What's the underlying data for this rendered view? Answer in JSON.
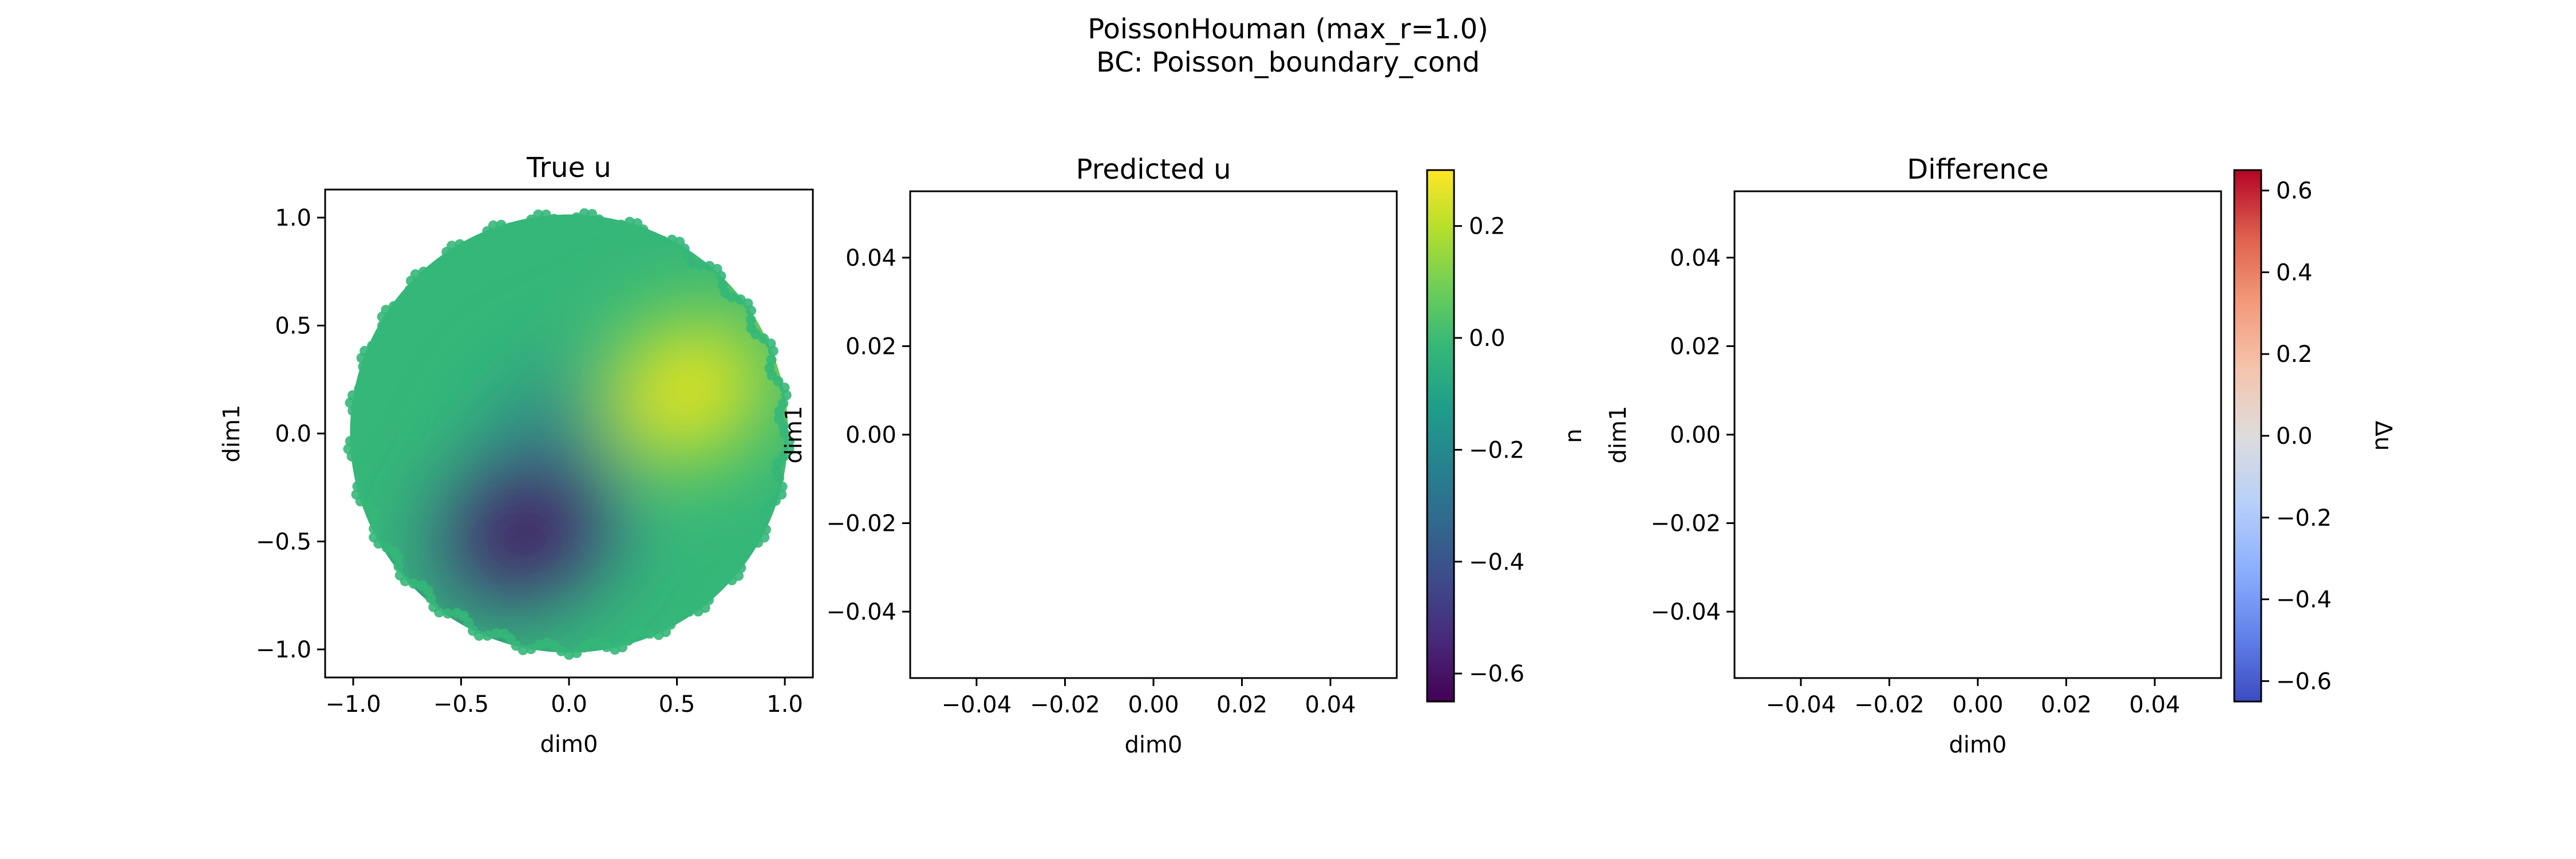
{
  "figure": {
    "title_line1": "PoissonHouman (max_r=1.0)",
    "title_line2": "BC: Poisson_boundary_cond"
  },
  "colormaps": {
    "viridis": [
      "#440154",
      "#482878",
      "#3e4989",
      "#31688e",
      "#26828e",
      "#1f9e89",
      "#35b779",
      "#6ece58",
      "#b5de2b",
      "#fde725"
    ],
    "coolwarm_r": [
      "#3b4cc0",
      "#6282ea",
      "#8db0fe",
      "#b8d0f9",
      "#dddcdc",
      "#f5c4ac",
      "#f49a7b",
      "#de604d",
      "#b40426"
    ]
  },
  "chart_data": [
    {
      "type": "scatter",
      "title": "True u",
      "xlabel": "dim0",
      "ylabel": "dim1",
      "xlim": [
        -1.13,
        1.13
      ],
      "ylim": [
        -1.13,
        1.13
      ],
      "xticks": [
        "−1.0",
        "−0.5",
        "0.0",
        "0.5",
        "1.0"
      ],
      "xtick_values": [
        -1.0,
        -0.5,
        0.0,
        0.5,
        1.0
      ],
      "yticks": [
        "1.0",
        "0.5",
        "0.0",
        "−0.5",
        "−1.0"
      ],
      "ytick_values": [
        1.0,
        0.5,
        0.0,
        -0.5,
        -1.0
      ],
      "domain": "unit disk, radius 1.0",
      "field_extrema": [
        {
          "label": "max",
          "x": 0.55,
          "y": 0.2,
          "u": 0.3
        },
        {
          "label": "min",
          "x": -0.2,
          "y": -0.45,
          "u": -0.65
        }
      ],
      "colormap": "viridis",
      "clim": [
        -0.65,
        0.3
      ]
    },
    {
      "type": "scatter",
      "title": "Predicted u",
      "xlabel": "dim0",
      "ylabel": "dim1",
      "xlim": [
        -0.055,
        0.055
      ],
      "ylim": [
        -0.055,
        0.055
      ],
      "xticks": [
        "−0.04",
        "−0.02",
        "0.00",
        "0.02",
        "0.04"
      ],
      "xtick_values": [
        -0.04,
        -0.02,
        0.0,
        0.02,
        0.04
      ],
      "yticks": [
        "0.04",
        "0.02",
        "0.00",
        "−0.02",
        "−0.04"
      ],
      "ytick_values": [
        0.04,
        0.02,
        0.0,
        -0.02,
        -0.04
      ],
      "points": [],
      "colorbar": {
        "label": "u",
        "colormap": "viridis",
        "range": [
          -0.65,
          0.3
        ],
        "ticks": [
          "0.2",
          "0.0",
          "−0.2",
          "−0.4",
          "−0.6"
        ],
        "tick_values": [
          0.2,
          0.0,
          -0.2,
          -0.4,
          -0.6
        ]
      }
    },
    {
      "type": "scatter",
      "title": "Difference",
      "xlabel": "dim0",
      "ylabel": "dim1",
      "xlim": [
        -0.055,
        0.055
      ],
      "ylim": [
        -0.055,
        0.055
      ],
      "xticks": [
        "−0.04",
        "−0.02",
        "0.00",
        "0.02",
        "0.04"
      ],
      "xtick_values": [
        -0.04,
        -0.02,
        0.0,
        0.02,
        0.04
      ],
      "yticks": [
        "0.04",
        "0.02",
        "0.00",
        "−0.02",
        "−0.04"
      ],
      "ytick_values": [
        0.04,
        0.02,
        0.0,
        -0.02,
        -0.04
      ],
      "points": [],
      "colorbar": {
        "label": "Δu",
        "colormap": "coolwarm_r",
        "range": [
          -0.65,
          0.65
        ],
        "ticks": [
          "0.6",
          "0.4",
          "0.2",
          "0.0",
          "−0.2",
          "−0.4",
          "−0.6"
        ],
        "tick_values": [
          0.6,
          0.4,
          0.2,
          0.0,
          -0.2,
          -0.4,
          -0.6
        ]
      }
    }
  ]
}
